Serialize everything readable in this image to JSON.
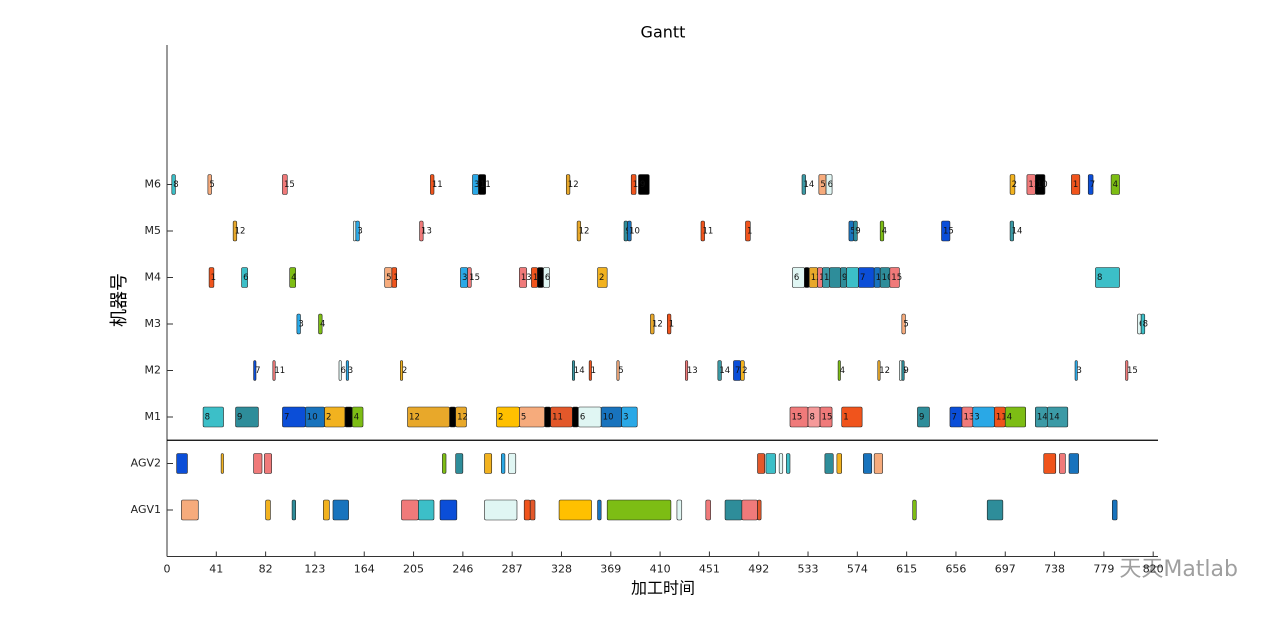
{
  "chart_data": {
    "type": "gantt",
    "title": "Gantt",
    "xlabel": "加工时间",
    "ylabel": "机器号",
    "watermark": "天天Matlab",
    "xlim": [
      0,
      824
    ],
    "xticks": [
      0,
      41,
      82,
      123,
      164,
      205,
      246,
      287,
      328,
      369,
      410,
      451,
      492,
      533,
      574,
      615,
      656,
      697,
      738,
      779,
      820
    ],
    "ylim": [
      0,
      11
    ],
    "yticks": [
      {
        "value": 1,
        "label": "AGV1"
      },
      {
        "value": 2,
        "label": "AGV2"
      },
      {
        "value": 3,
        "label": "M1"
      },
      {
        "value": 4,
        "label": "M2"
      },
      {
        "value": 5,
        "label": "M3"
      },
      {
        "value": 6,
        "label": "M4"
      },
      {
        "value": 7,
        "label": "M5"
      },
      {
        "value": 8,
        "label": "M6"
      }
    ],
    "divider_y": 2.5,
    "tasks": [
      {
        "row": 3,
        "start": 30,
        "end": 47,
        "label": 8,
        "color": "#3cbfc8"
      },
      {
        "row": 3,
        "start": 57,
        "end": 76,
        "label": 9,
        "color": "#2e8d9a"
      },
      {
        "row": 3,
        "start": 96,
        "end": 115,
        "label": 7,
        "color": "#0b4ed8"
      },
      {
        "row": 3,
        "start": 115,
        "end": 131,
        "label": 10,
        "color": "#1873bd"
      },
      {
        "row": 3,
        "start": 131,
        "end": 148,
        "label": 2,
        "color": "#f2b21f"
      },
      {
        "row": 3,
        "start": 148,
        "end": 154,
        "color": "#000000"
      },
      {
        "row": 3,
        "start": 154,
        "end": 163,
        "label": 4,
        "color": "#7dbd14"
      },
      {
        "row": 3,
        "start": 200,
        "end": 235,
        "label": 12,
        "color": "#e8a82a"
      },
      {
        "row": 3,
        "start": 235,
        "end": 240,
        "color": "#000000"
      },
      {
        "row": 3,
        "start": 240,
        "end": 249,
        "label": 12,
        "color": "#e8a82a"
      },
      {
        "row": 3,
        "start": 274,
        "end": 293,
        "label": 2,
        "color": "#ffc000"
      },
      {
        "row": 3,
        "start": 293,
        "end": 314,
        "label": 5,
        "color": "#f6ab7c"
      },
      {
        "row": 3,
        "start": 314,
        "end": 319,
        "color": "#000000"
      },
      {
        "row": 3,
        "start": 319,
        "end": 337,
        "label": 11,
        "color": "#e3582a"
      },
      {
        "row": 3,
        "start": 337,
        "end": 342,
        "color": "#000000"
      },
      {
        "row": 3,
        "start": 342,
        "end": 361,
        "label": 6,
        "color": "#e0f6f3"
      },
      {
        "row": 3,
        "start": 361,
        "end": 378,
        "label": 10,
        "color": "#1873bd"
      },
      {
        "row": 3,
        "start": 378,
        "end": 391,
        "label": 3,
        "color": "#2aa8e6"
      },
      {
        "row": 3,
        "start": 518,
        "end": 533,
        "label": 15,
        "color": "#f07a7a"
      },
      {
        "row": 3,
        "start": 533,
        "end": 543,
        "label": 8,
        "color": "#f59a9a"
      },
      {
        "row": 3,
        "start": 543,
        "end": 553,
        "label": 15,
        "color": "#f07a7a"
      },
      {
        "row": 3,
        "start": 561,
        "end": 578,
        "label": 1,
        "color": "#f0541c"
      },
      {
        "row": 3,
        "start": 624,
        "end": 634,
        "label": 9,
        "color": "#2e8d9a"
      },
      {
        "row": 3,
        "start": 651,
        "end": 661,
        "label": 7,
        "color": "#0b4ed8"
      },
      {
        "row": 3,
        "start": 661,
        "end": 670,
        "label": 13,
        "color": "#f07a7a"
      },
      {
        "row": 3,
        "start": 670,
        "end": 688,
        "label": 3,
        "color": "#2aa8e6"
      },
      {
        "row": 3,
        "start": 688,
        "end": 697,
        "label": 11,
        "color": "#f0541c"
      },
      {
        "row": 3,
        "start": 697,
        "end": 714,
        "label": 4,
        "color": "#7dbd14"
      },
      {
        "row": 3,
        "start": 722,
        "end": 732,
        "label": 14,
        "color": "#3b9aa6"
      },
      {
        "row": 3,
        "start": 732,
        "end": 749,
        "label": 14,
        "color": "#3b9aa6"
      },
      {
        "row": 4,
        "start": 72,
        "end": 74,
        "label": 7,
        "color": "#0b4ed8"
      },
      {
        "row": 4,
        "start": 88,
        "end": 90,
        "label": 11,
        "color": "#f07a7a"
      },
      {
        "row": 4,
        "start": 143,
        "end": 145,
        "label": 6,
        "color": "#e0f6f3"
      },
      {
        "row": 4,
        "start": 149,
        "end": 151,
        "label": 3,
        "color": "#2aa8e6"
      },
      {
        "row": 4,
        "start": 194,
        "end": 196,
        "label": 2,
        "color": "#f2b21f"
      },
      {
        "row": 4,
        "start": 337,
        "end": 339,
        "label": 14,
        "color": "#3b9aa6"
      },
      {
        "row": 4,
        "start": 351,
        "end": 353,
        "label": 1,
        "color": "#f0541c"
      },
      {
        "row": 4,
        "start": 374,
        "end": 376,
        "label": 5,
        "color": "#f6ab7c"
      },
      {
        "row": 4,
        "start": 431,
        "end": 433,
        "label": 13,
        "color": "#f07a7a"
      },
      {
        "row": 4,
        "start": 458,
        "end": 461,
        "label": 14,
        "color": "#3b9aa6"
      },
      {
        "row": 4,
        "start": 471,
        "end": 477,
        "label": 7,
        "color": "#0b4ed8"
      },
      {
        "row": 4,
        "start": 477,
        "end": 480,
        "label": 2,
        "color": "#f2b21f"
      },
      {
        "row": 4,
        "start": 558,
        "end": 560,
        "label": 4,
        "color": "#7dbd14"
      },
      {
        "row": 4,
        "start": 591,
        "end": 593,
        "label": 12,
        "color": "#e8a82a"
      },
      {
        "row": 4,
        "start": 609,
        "end": 611,
        "label": 6,
        "color": "#e0f6f3"
      },
      {
        "row": 4,
        "start": 611,
        "end": 613,
        "label": 9,
        "color": "#2e8d9a"
      },
      {
        "row": 4,
        "start": 755,
        "end": 757,
        "label": 3,
        "color": "#2aa8e6"
      },
      {
        "row": 4,
        "start": 797,
        "end": 799,
        "label": 15,
        "color": "#f07a7a"
      },
      {
        "row": 5,
        "start": 108,
        "end": 111,
        "label": 3,
        "color": "#2aa8e6"
      },
      {
        "row": 5,
        "start": 126,
        "end": 129,
        "label": 4,
        "color": "#7dbd14"
      },
      {
        "row": 5,
        "start": 402,
        "end": 405,
        "label": 12,
        "color": "#e8a82a"
      },
      {
        "row": 5,
        "start": 416,
        "end": 419,
        "label": 1,
        "color": "#f0541c"
      },
      {
        "row": 5,
        "start": 611,
        "end": 614,
        "label": 5,
        "color": "#f6ab7c"
      },
      {
        "row": 5,
        "start": 807,
        "end": 810,
        "label": 6,
        "color": "#e0f6f3"
      },
      {
        "row": 5,
        "start": 810,
        "end": 813,
        "label": 8,
        "color": "#3cbfc8"
      },
      {
        "row": 6,
        "start": 35,
        "end": 39,
        "label": 1,
        "color": "#f0541c"
      },
      {
        "row": 6,
        "start": 62,
        "end": 67,
        "label": 6,
        "color": "#3cbfc8"
      },
      {
        "row": 6,
        "start": 102,
        "end": 107,
        "label": 4,
        "color": "#7dbd14"
      },
      {
        "row": 6,
        "start": 181,
        "end": 187,
        "label": 5,
        "color": "#f6ab7c"
      },
      {
        "row": 6,
        "start": 187,
        "end": 191,
        "label": 1,
        "color": "#f0541c"
      },
      {
        "row": 6,
        "start": 244,
        "end": 250,
        "label": 3,
        "color": "#2aa8e6"
      },
      {
        "row": 6,
        "start": 250,
        "end": 253,
        "label": 15,
        "color": "#f07a7a"
      },
      {
        "row": 6,
        "start": 293,
        "end": 299,
        "label": 13,
        "color": "#f07a7a"
      },
      {
        "row": 6,
        "start": 303,
        "end": 308,
        "label": 1,
        "color": "#f0541c"
      },
      {
        "row": 6,
        "start": 308,
        "end": 313,
        "color": "#000000"
      },
      {
        "row": 6,
        "start": 313,
        "end": 318,
        "label": 6,
        "color": "#e0f6f3"
      },
      {
        "row": 6,
        "start": 358,
        "end": 366,
        "label": 2,
        "color": "#f2b21f"
      },
      {
        "row": 6,
        "start": 520,
        "end": 530,
        "label": 6,
        "color": "#e0f6f3"
      },
      {
        "row": 6,
        "start": 530,
        "end": 534,
        "color": "#000000"
      },
      {
        "row": 6,
        "start": 534,
        "end": 541,
        "label": 12,
        "color": "#e8a82a"
      },
      {
        "row": 6,
        "start": 541,
        "end": 545,
        "label": 13,
        "color": "#f07a7a"
      },
      {
        "row": 6,
        "start": 545,
        "end": 551,
        "label": 14,
        "color": "#3b9aa6"
      },
      {
        "row": 6,
        "start": 551,
        "end": 560,
        "color": "#2e8d9a"
      },
      {
        "row": 6,
        "start": 560,
        "end": 565,
        "label": 9,
        "color": "#2e8d9a"
      },
      {
        "row": 6,
        "start": 565,
        "end": 575,
        "color": "#3cbfc8"
      },
      {
        "row": 6,
        "start": 575,
        "end": 588,
        "label": 7,
        "color": "#0b4ed8"
      },
      {
        "row": 6,
        "start": 588,
        "end": 593,
        "label": 10,
        "color": "#1873bd"
      },
      {
        "row": 6,
        "start": 593,
        "end": 601,
        "label": 10,
        "color": "#2e8d9a"
      },
      {
        "row": 6,
        "start": 601,
        "end": 609,
        "label": 15,
        "color": "#f07a7a"
      },
      {
        "row": 6,
        "start": 772,
        "end": 792,
        "label": 8,
        "color": "#3cbfc8"
      },
      {
        "row": 7,
        "start": 55,
        "end": 58,
        "label": 12,
        "color": "#e8a82a"
      },
      {
        "row": 7,
        "start": 155,
        "end": 157,
        "label": 6,
        "color": "#e0f6f3"
      },
      {
        "row": 7,
        "start": 157,
        "end": 160,
        "label": 3,
        "color": "#2aa8e6"
      },
      {
        "row": 7,
        "start": 210,
        "end": 213,
        "label": 13,
        "color": "#f07a7a"
      },
      {
        "row": 7,
        "start": 341,
        "end": 344,
        "label": 12,
        "color": "#e8a82a"
      },
      {
        "row": 7,
        "start": 380,
        "end": 383,
        "label": 9,
        "color": "#2e8d9a"
      },
      {
        "row": 7,
        "start": 383,
        "end": 386,
        "label": 10,
        "color": "#1873bd"
      },
      {
        "row": 7,
        "start": 444,
        "end": 447,
        "label": 11,
        "color": "#f0541c"
      },
      {
        "row": 7,
        "start": 481,
        "end": 485,
        "label": 1,
        "color": "#f0541c"
      },
      {
        "row": 7,
        "start": 567,
        "end": 571,
        "label": 5,
        "color": "#1873bd"
      },
      {
        "row": 7,
        "start": 571,
        "end": 574,
        "label": 9,
        "color": "#2e8d9a"
      },
      {
        "row": 7,
        "start": 593,
        "end": 596,
        "label": 4,
        "color": "#7dbd14"
      },
      {
        "row": 7,
        "start": 644,
        "end": 651,
        "label": 15,
        "color": "#0b4ed8"
      },
      {
        "row": 7,
        "start": 701,
        "end": 704,
        "label": 14,
        "color": "#3b9aa6"
      },
      {
        "row": 8,
        "start": 4,
        "end": 7,
        "label": 8,
        "color": "#3cbfc8"
      },
      {
        "row": 8,
        "start": 34,
        "end": 37,
        "label": 5,
        "color": "#f6ab7c"
      },
      {
        "row": 8,
        "start": 96,
        "end": 100,
        "label": 15,
        "color": "#f07a7a"
      },
      {
        "row": 8,
        "start": 219,
        "end": 222,
        "label": 11,
        "color": "#f0541c"
      },
      {
        "row": 8,
        "start": 254,
        "end": 259,
        "label": 3,
        "color": "#2aa8e6"
      },
      {
        "row": 8,
        "start": 259,
        "end": 265,
        "label": 11,
        "color": "#000000"
      },
      {
        "row": 8,
        "start": 332,
        "end": 335,
        "label": 12,
        "color": "#e8a82a"
      },
      {
        "row": 8,
        "start": 386,
        "end": 390,
        "label": 13,
        "color": "#f0541c"
      },
      {
        "row": 8,
        "start": 392,
        "end": 401,
        "label": 9,
        "color": "#000000"
      },
      {
        "row": 8,
        "start": 528,
        "end": 531,
        "label": 14,
        "color": "#3b9aa6"
      },
      {
        "row": 8,
        "start": 542,
        "end": 548,
        "label": 5,
        "color": "#f6ab7c"
      },
      {
        "row": 8,
        "start": 548,
        "end": 553,
        "label": 6,
        "color": "#e0f6f3"
      },
      {
        "row": 8,
        "start": 701,
        "end": 705,
        "label": 2,
        "color": "#f2b21f"
      },
      {
        "row": 8,
        "start": 715,
        "end": 722,
        "label": 13,
        "color": "#f07a7a"
      },
      {
        "row": 8,
        "start": 722,
        "end": 730,
        "label": 10,
        "color": "#000000"
      },
      {
        "row": 8,
        "start": 752,
        "end": 759,
        "label": 1,
        "color": "#f0541c"
      },
      {
        "row": 8,
        "start": 766,
        "end": 770,
        "label": 7,
        "color": "#0b4ed8"
      },
      {
        "row": 8,
        "start": 785,
        "end": 792,
        "label": 4,
        "color": "#7dbd14"
      },
      {
        "row": 2,
        "start": 8,
        "end": 17,
        "color": "#0b4ed8"
      },
      {
        "row": 2,
        "start": 45,
        "end": 47,
        "color": "#f2b21f"
      },
      {
        "row": 2,
        "start": 72,
        "end": 79,
        "color": "#f07a7a"
      },
      {
        "row": 2,
        "start": 81,
        "end": 87,
        "color": "#f07a7a"
      },
      {
        "row": 2,
        "start": 229,
        "end": 232,
        "color": "#7dbd14"
      },
      {
        "row": 2,
        "start": 240,
        "end": 246,
        "color": "#2e8d9a"
      },
      {
        "row": 2,
        "start": 264,
        "end": 270,
        "color": "#f2b21f"
      },
      {
        "row": 2,
        "start": 278,
        "end": 281,
        "color": "#2aa8e6"
      },
      {
        "row": 2,
        "start": 284,
        "end": 290,
        "color": "#e0f6f3"
      },
      {
        "row": 2,
        "start": 491,
        "end": 497,
        "color": "#e3582a"
      },
      {
        "row": 2,
        "start": 498,
        "end": 506,
        "color": "#3cbfc8"
      },
      {
        "row": 2,
        "start": 509,
        "end": 512,
        "color": "#e0f6f3"
      },
      {
        "row": 2,
        "start": 515,
        "end": 518,
        "color": "#3cbfc8"
      },
      {
        "row": 2,
        "start": 547,
        "end": 554,
        "color": "#2e8d9a"
      },
      {
        "row": 2,
        "start": 557,
        "end": 561,
        "color": "#f2b21f"
      },
      {
        "row": 2,
        "start": 579,
        "end": 586,
        "color": "#1873bd"
      },
      {
        "row": 2,
        "start": 588,
        "end": 595,
        "color": "#f6ab7c"
      },
      {
        "row": 2,
        "start": 729,
        "end": 739,
        "color": "#f0541c"
      },
      {
        "row": 2,
        "start": 742,
        "end": 747,
        "color": "#f07a7a"
      },
      {
        "row": 2,
        "start": 750,
        "end": 758,
        "color": "#1873bd"
      },
      {
        "row": 1,
        "start": 12,
        "end": 26,
        "color": "#f6ab7c"
      },
      {
        "row": 1,
        "start": 82,
        "end": 86,
        "color": "#f2b21f"
      },
      {
        "row": 1,
        "start": 104,
        "end": 107,
        "color": "#2e8d9a"
      },
      {
        "row": 1,
        "start": 130,
        "end": 135,
        "color": "#f2b21f"
      },
      {
        "row": 1,
        "start": 138,
        "end": 151,
        "color": "#1873bd"
      },
      {
        "row": 1,
        "start": 195,
        "end": 209,
        "color": "#f07a7a"
      },
      {
        "row": 1,
        "start": 209,
        "end": 222,
        "color": "#3cbfc8"
      },
      {
        "row": 1,
        "start": 227,
        "end": 241,
        "color": "#0b4ed8"
      },
      {
        "row": 1,
        "start": 264,
        "end": 291,
        "color": "#e0f6f3"
      },
      {
        "row": 1,
        "start": 297,
        "end": 302,
        "color": "#f0541c"
      },
      {
        "row": 1,
        "start": 302,
        "end": 306,
        "color": "#e3582a"
      },
      {
        "row": 1,
        "start": 326,
        "end": 353,
        "color": "#ffc000"
      },
      {
        "row": 1,
        "start": 358,
        "end": 361,
        "color": "#1873bd"
      },
      {
        "row": 1,
        "start": 366,
        "end": 419,
        "color": "#7dbd14"
      },
      {
        "row": 1,
        "start": 424,
        "end": 428,
        "color": "#e0f6f3"
      },
      {
        "row": 1,
        "start": 448,
        "end": 452,
        "color": "#f07a7a"
      },
      {
        "row": 1,
        "start": 464,
        "end": 478,
        "color": "#2e8d9a"
      },
      {
        "row": 1,
        "start": 478,
        "end": 491,
        "color": "#f07a7a"
      },
      {
        "row": 1,
        "start": 491,
        "end": 494,
        "color": "#e3582a"
      },
      {
        "row": 1,
        "start": 620,
        "end": 623,
        "color": "#7dbd14"
      },
      {
        "row": 1,
        "start": 682,
        "end": 695,
        "color": "#2e8d9a"
      },
      {
        "row": 1,
        "start": 786,
        "end": 790,
        "color": "#1873bd"
      }
    ]
  }
}
